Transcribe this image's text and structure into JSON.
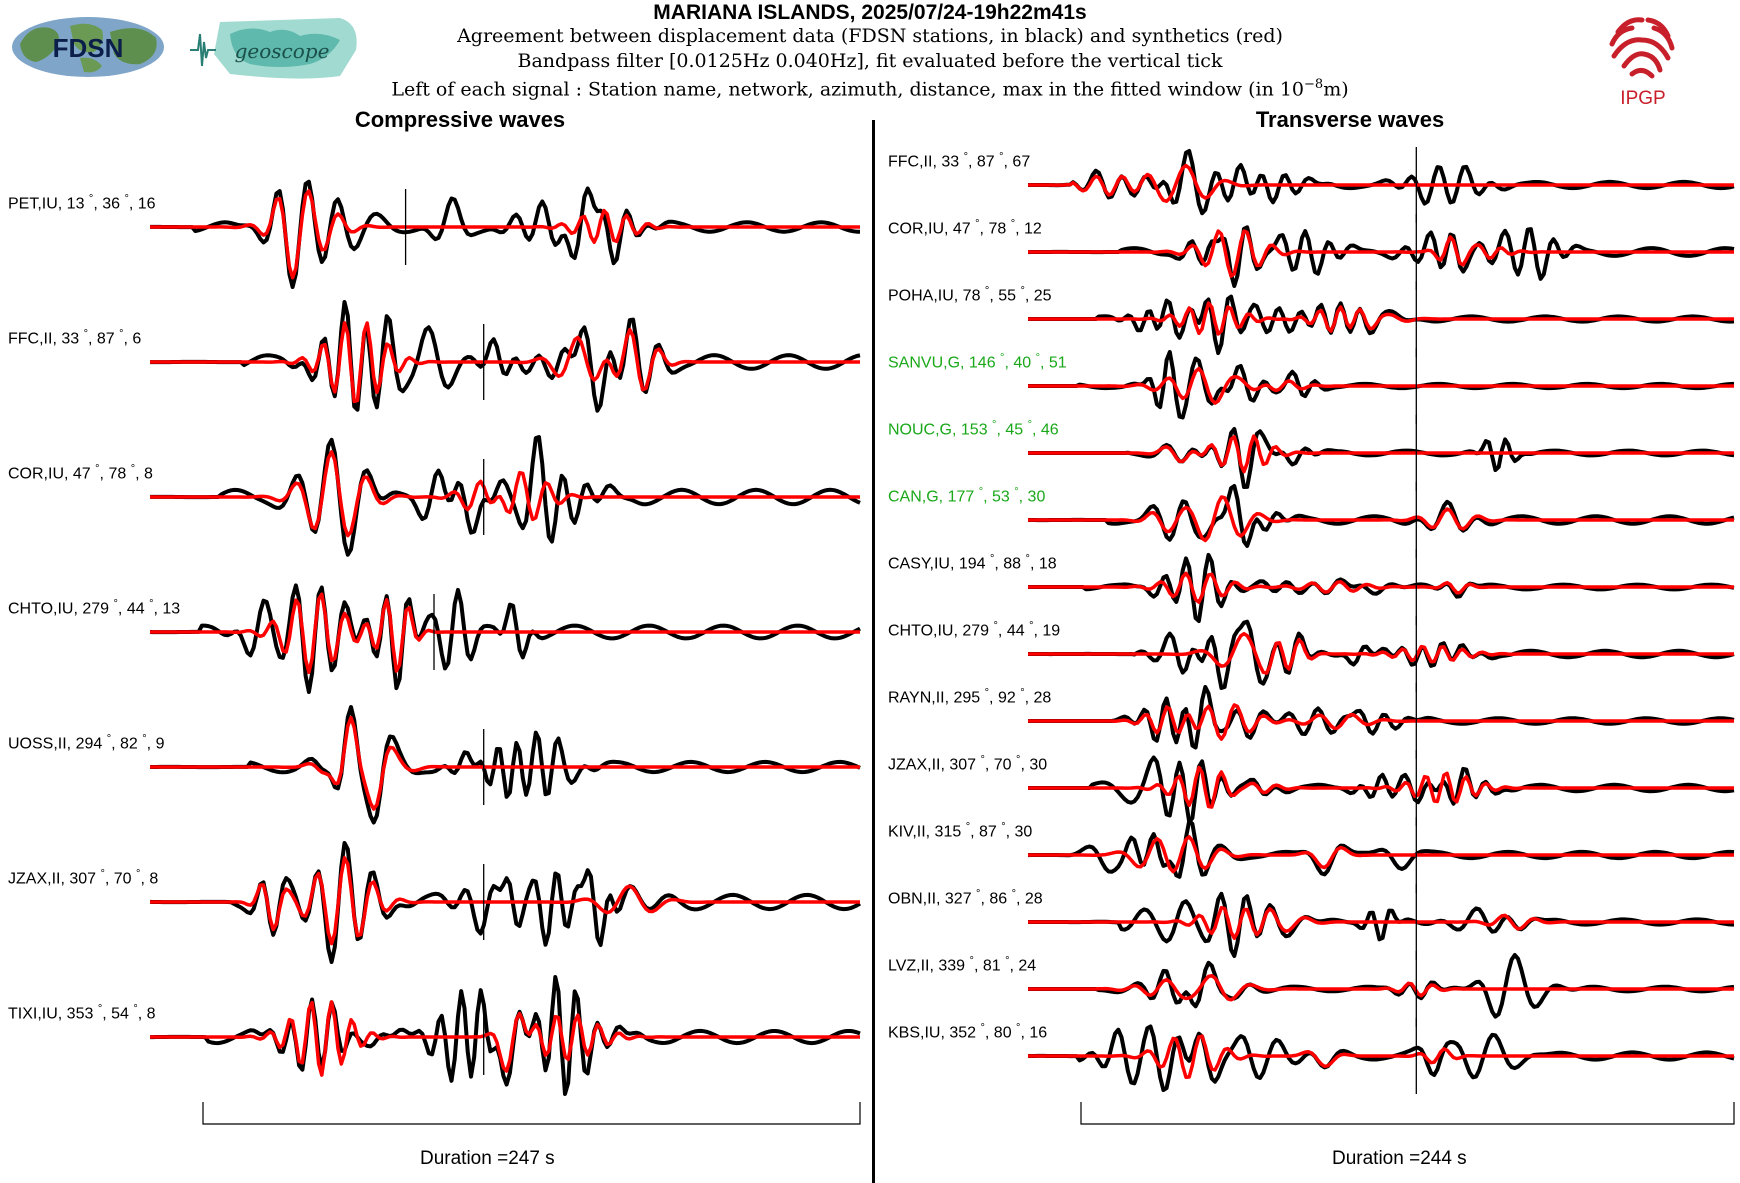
{
  "header": {
    "title": "MARIANA ISLANDS, 2025/07/24-19h22m41s",
    "subtitle_line1": "Agreement between displacement data (FDSN stations, in black) and synthetics (red)",
    "subtitle_line2": "Bandpass filter [0.0125Hz 0.040Hz], fit evaluated before the vertical tick",
    "subtitle_line3_prefix": "Left of each signal : Station name, network, azimuth, distance, max in the fitted window (in 10",
    "subtitle_line3_exp": "−8",
    "subtitle_line3_suffix": "m)",
    "logos": {
      "fdsn": "FDSN",
      "geoscope": "geoscope",
      "ipgp": "IPGP"
    }
  },
  "colors": {
    "data": "#000000",
    "synthetic": "#ff0000",
    "highlight_label": "#1aa81a",
    "ipgp": "#c8202a"
  },
  "chart_data": [
    {
      "type": "line",
      "title": "Compressive waves",
      "duration_label": "Duration =247 s",
      "duration_s": 247,
      "series": [
        {
          "name": "data"
        },
        {
          "name": "synthetics"
        }
      ],
      "stations": [
        {
          "station": "PET",
          "network": "IU",
          "azimuth": "13",
          "distance": "36",
          "max": "16",
          "tick_fraction": 0.36
        },
        {
          "station": "FFC",
          "network": "II",
          "azimuth": "33",
          "distance": "87",
          "max": "6",
          "tick_fraction": 0.47
        },
        {
          "station": "COR",
          "network": "IU",
          "azimuth": "47",
          "distance": "78",
          "max": "8",
          "tick_fraction": 0.47
        },
        {
          "station": "CHTO",
          "network": "IU",
          "azimuth": "279",
          "distance": "44",
          "max": "13",
          "tick_fraction": 0.4
        },
        {
          "station": "UOSS",
          "network": "II",
          "azimuth": "294",
          "distance": "82",
          "max": "9",
          "tick_fraction": 0.47
        },
        {
          "station": "JZAX",
          "network": "II",
          "azimuth": "307",
          "distance": "70",
          "max": "8",
          "tick_fraction": 0.47
        },
        {
          "station": "TIXI",
          "network": "IU",
          "azimuth": "353",
          "distance": "54",
          "max": "8",
          "tick_fraction": 0.47
        }
      ]
    },
    {
      "type": "line",
      "title": "Transverse waves",
      "duration_label": "Duration =244 s",
      "duration_s": 244,
      "series": [
        {
          "name": "data"
        },
        {
          "name": "synthetics"
        }
      ],
      "stations": [
        {
          "station": "FFC",
          "network": "II",
          "azimuth": "33",
          "distance": "87",
          "max": "67",
          "tick_fraction": 0.55,
          "highlight": false
        },
        {
          "station": "COR",
          "network": "IU",
          "azimuth": "47",
          "distance": "78",
          "max": "12",
          "tick_fraction": 0.55,
          "highlight": false
        },
        {
          "station": "POHA",
          "network": "IU",
          "azimuth": "78",
          "distance": "55",
          "max": "25",
          "tick_fraction": 0.55,
          "highlight": false
        },
        {
          "station": "SANVU",
          "network": "G",
          "azimuth": "146",
          "distance": "40",
          "max": "51",
          "tick_fraction": 0.55,
          "highlight": true
        },
        {
          "station": "NOUC",
          "network": "G",
          "azimuth": "153",
          "distance": "45",
          "max": "46",
          "tick_fraction": 0.55,
          "highlight": true
        },
        {
          "station": "CAN",
          "network": "G",
          "azimuth": "177",
          "distance": "53",
          "max": "30",
          "tick_fraction": 0.55,
          "highlight": true
        },
        {
          "station": "CASY",
          "network": "IU",
          "azimuth": "194",
          "distance": "88",
          "max": "18",
          "tick_fraction": 0.55,
          "highlight": false
        },
        {
          "station": "CHTO",
          "network": "IU",
          "azimuth": "279",
          "distance": "44",
          "max": "19",
          "tick_fraction": 0.55,
          "highlight": false
        },
        {
          "station": "RAYN",
          "network": "II",
          "azimuth": "295",
          "distance": "92",
          "max": "28",
          "tick_fraction": 0.55,
          "highlight": false
        },
        {
          "station": "JZAX",
          "network": "II",
          "azimuth": "307",
          "distance": "70",
          "max": "30",
          "tick_fraction": 0.55,
          "highlight": false
        },
        {
          "station": "KIV",
          "network": "II",
          "azimuth": "315",
          "distance": "87",
          "max": "30",
          "tick_fraction": 0.55,
          "highlight": false
        },
        {
          "station": "OBN",
          "network": "II",
          "azimuth": "327",
          "distance": "86",
          "max": "28",
          "tick_fraction": 0.55,
          "highlight": false
        },
        {
          "station": "LVZ",
          "network": "II",
          "azimuth": "339",
          "distance": "81",
          "max": "24",
          "tick_fraction": 0.55,
          "highlight": false
        },
        {
          "station": "KBS",
          "network": "IU",
          "azimuth": "352",
          "distance": "80",
          "max": "16",
          "tick_fraction": 0.55,
          "highlight": false
        }
      ]
    }
  ]
}
